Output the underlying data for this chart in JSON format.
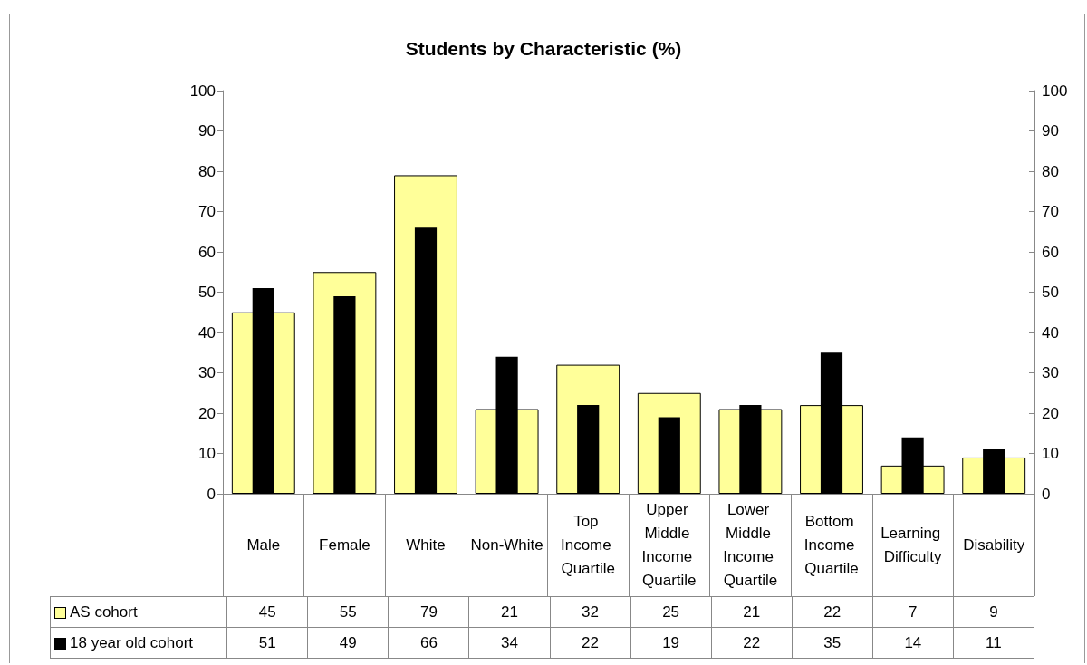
{
  "chart_data": {
    "type": "bar",
    "title": "Students by Characteristic (%)",
    "categories": [
      "Male",
      "Female",
      "White",
      "Non-White",
      "Top Income Quartile",
      "Upper Middle Income Quartile",
      "Lower Middle Income Quartile",
      "Bottom Income Quartile",
      "Learning Difficulty",
      "Disability"
    ],
    "series": [
      {
        "name": "AS cohort",
        "color": "#ffff99",
        "values": [
          45,
          55,
          79,
          21,
          32,
          25,
          21,
          22,
          7,
          9
        ]
      },
      {
        "name": "18 year old cohort",
        "color": "#000000",
        "values": [
          51,
          49,
          66,
          34,
          22,
          19,
          22,
          35,
          14,
          11
        ]
      }
    ],
    "ylim": [
      0,
      100
    ],
    "yticks": [
      0,
      10,
      20,
      30,
      40,
      50,
      60,
      70,
      80,
      90,
      100
    ],
    "y2lim": [
      0,
      100
    ],
    "y2ticks": [
      0,
      10,
      20,
      30,
      40,
      50,
      60,
      70,
      80,
      90,
      100
    ],
    "grid": false,
    "legend": "bottom",
    "data_labels": true
  }
}
